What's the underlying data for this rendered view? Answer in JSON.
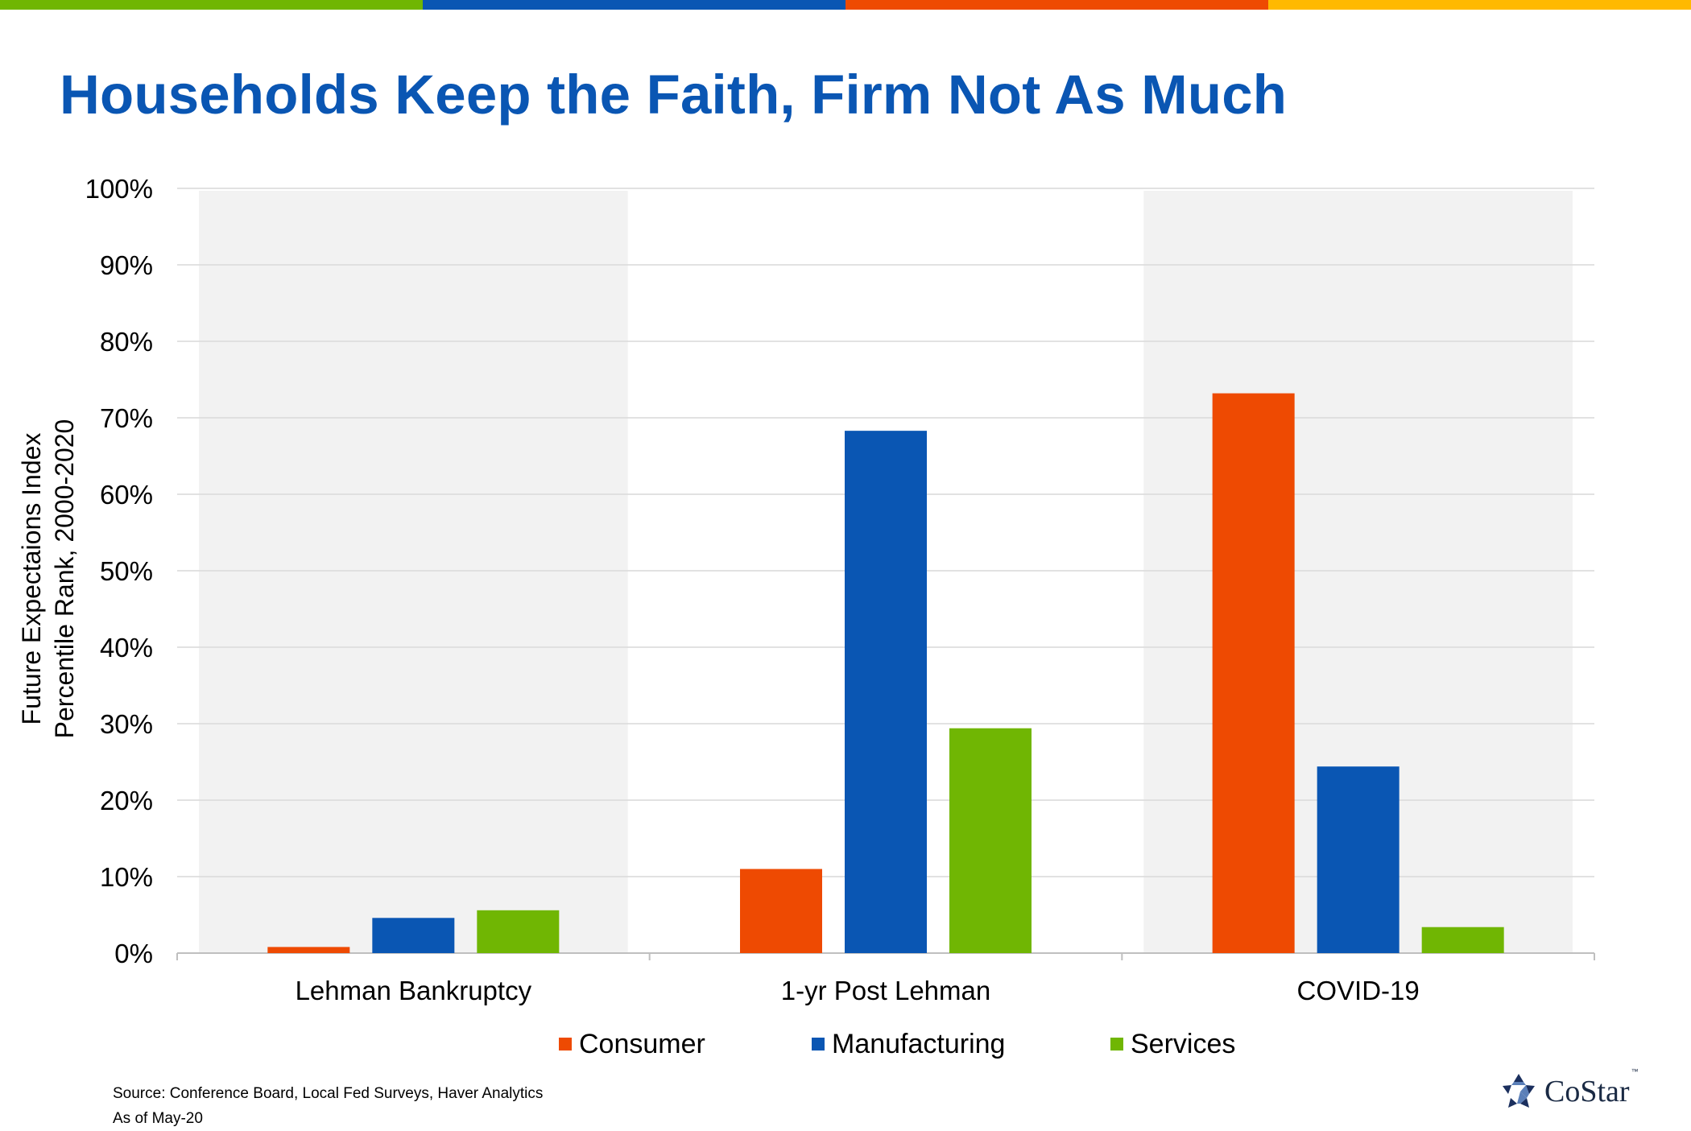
{
  "colors": {
    "stripe": [
      "#70B603",
      "#0A56B3",
      "#EE4A02",
      "#FFB900"
    ],
    "title": "#0A56B3",
    "shade": "#F2F2F2",
    "grid": "#D9D9D9",
    "axis": "#BFBFBF"
  },
  "title": "Households Keep the Faith, Firm Not As Much",
  "chart_data": {
    "type": "bar",
    "categories": [
      "Lehman Bankruptcy",
      "1-yr Post Lehman",
      "COVID-19"
    ],
    "shaded_categories": [
      0,
      2
    ],
    "series": [
      {
        "name": "Consumer",
        "color": "#EE4A02",
        "values": [
          0.008,
          0.11,
          0.732
        ]
      },
      {
        "name": "Manufacturing",
        "color": "#0A56B3",
        "values": [
          0.046,
          0.683,
          0.244
        ]
      },
      {
        "name": "Services",
        "color": "#70B603",
        "values": [
          0.056,
          0.294,
          0.034
        ]
      }
    ],
    "ylabel": [
      "Future Expectaions Index",
      "Percentile Rank, 2000-2020"
    ],
    "ylim": [
      0,
      1
    ],
    "yticks": [
      "0%",
      "10%",
      "20%",
      "30%",
      "40%",
      "50%",
      "60%",
      "70%",
      "80%",
      "90%",
      "100%"
    ],
    "grid": true,
    "legend_position": "bottom"
  },
  "source": {
    "line1": "Source: Conference Board, Local Fed Surveys, Haver Analytics",
    "line2": "As of May-20"
  },
  "logo": {
    "text": "CoStar",
    "tm": "™"
  }
}
